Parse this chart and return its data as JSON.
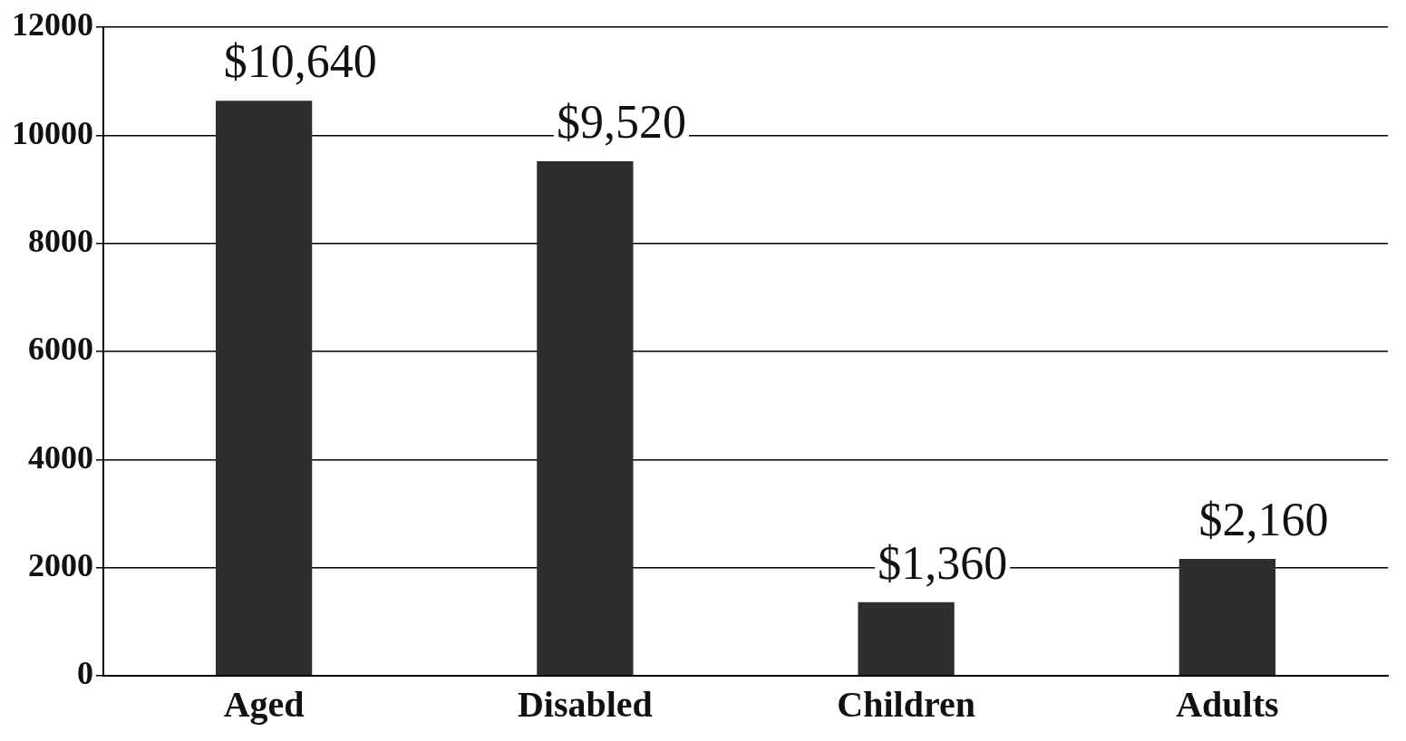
{
  "chart_data": {
    "type": "bar",
    "categories": [
      "Aged",
      "Disabled",
      "Children",
      "Adults"
    ],
    "values": [
      10640,
      9520,
      1360,
      2160
    ],
    "color": "#2e2e2e",
    "value_labels": [
      "$10,640",
      "$9,520",
      "$1,360",
      "$2,160"
    ],
    "ylim": [
      0,
      12000
    ],
    "yticks": [
      0,
      2000,
      4000,
      6000,
      8000,
      10000,
      12000
    ],
    "grid": "y"
  }
}
